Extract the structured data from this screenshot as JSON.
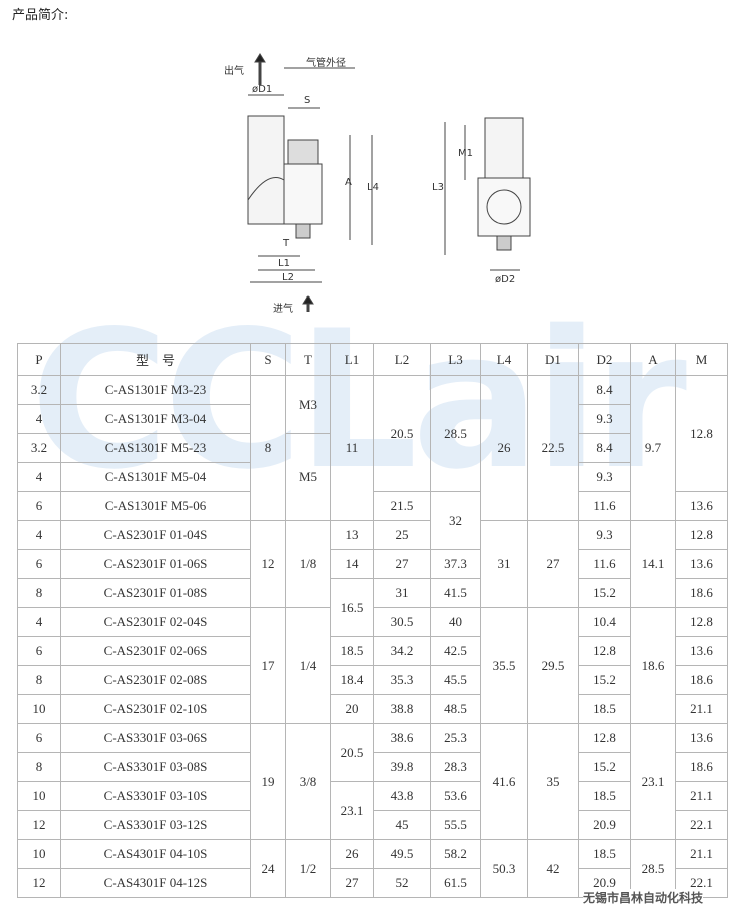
{
  "header": {
    "title": "产品简介:"
  },
  "diagram": {
    "out": "出气",
    "tube": "气管外径",
    "d1": "øD1",
    "s": "S",
    "a": "A",
    "l4": "L4",
    "t": "T",
    "l1": "L1",
    "l2": "L2",
    "in": "进气",
    "m1": "M1",
    "l3": "L3",
    "d2": "øD2"
  },
  "watermark": "CCLair",
  "table": {
    "columns": [
      "P",
      "型　号",
      "S",
      "T",
      "L1",
      "L2",
      "L3",
      "L4",
      "D1",
      "D2",
      "A",
      "M"
    ],
    "rows": [
      [
        "3.2",
        "C-AS1301F M3-23",
        "8",
        "M3",
        "11",
        "20.5",
        "28.5",
        "26",
        "22.5",
        "8.4",
        "9.7",
        "12.8"
      ],
      [
        "4",
        "C-AS1301F M3-04",
        "9.3"
      ],
      [
        "3.2",
        "C-AS1301F M5-23",
        "M5",
        "8.4"
      ],
      [
        "4",
        "C-AS1301F M5-04",
        "9.3"
      ],
      [
        "6",
        "C-AS1301F M5-06",
        "21.5",
        "32",
        "11.6",
        "13.6"
      ],
      [
        "4",
        "C-AS2301F 01-04S",
        "12",
        "1/8",
        "13",
        "25",
        "31",
        "27",
        "9.3",
        "14.1",
        "12.8"
      ],
      [
        "6",
        "C-AS2301F 01-06S",
        "14",
        "27",
        "37.3",
        "11.6",
        "13.6"
      ],
      [
        "8",
        "C-AS2301F 01-08S",
        "16.5",
        "31",
        "41.5",
        "15.2",
        "18.6"
      ],
      [
        "4",
        "C-AS2301F 02-04S",
        "17",
        "1/4",
        "30.5",
        "40",
        "35.5",
        "29.5",
        "10.4",
        "18.6",
        "12.8"
      ],
      [
        "6",
        "C-AS2301F 02-06S",
        "18.5",
        "34.2",
        "42.5",
        "12.8",
        "13.6"
      ],
      [
        "8",
        "C-AS2301F 02-08S",
        "18.4",
        "35.3",
        "45.5",
        "15.2",
        "18.6"
      ],
      [
        "10",
        "C-AS2301F 02-10S",
        "20",
        "38.8",
        "48.5",
        "18.5",
        "21.1"
      ],
      [
        "6",
        "C-AS3301F 03-06S",
        "19",
        "3/8",
        "20.5",
        "38.6",
        "25.3",
        "41.6",
        "35",
        "12.8",
        "23.1",
        "13.6"
      ],
      [
        "8",
        "C-AS3301F 03-08S",
        "39.8",
        "28.3",
        "15.2",
        "18.6"
      ],
      [
        "10",
        "C-AS3301F 03-10S",
        "23.1",
        "43.8",
        "53.6",
        "18.5",
        "21.1"
      ],
      [
        "12",
        "C-AS3301F 03-12S",
        "45",
        "55.5",
        "20.9",
        "22.1"
      ],
      [
        "10",
        "C-AS4301F 04-10S",
        "24",
        "1/2",
        "26",
        "49.5",
        "58.2",
        "50.3",
        "42",
        "18.5",
        "28.5",
        "21.1"
      ],
      [
        "12",
        "C-AS4301F 04-12S",
        "27",
        "52",
        "61.5",
        "20.9",
        "22.1"
      ]
    ]
  },
  "footer": "无锡市昌林自动化科技"
}
